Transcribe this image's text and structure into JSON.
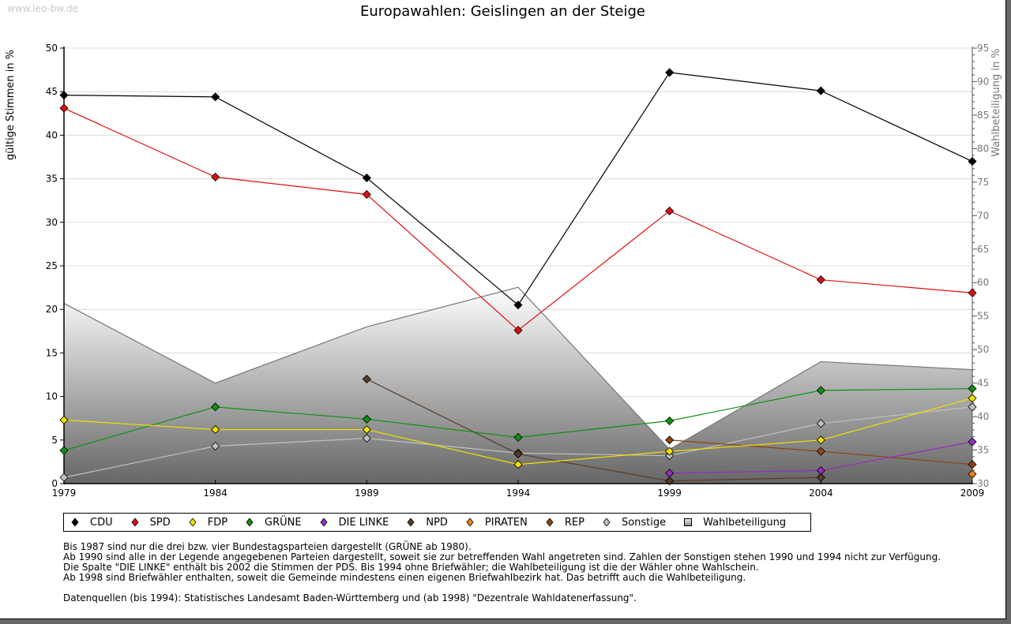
{
  "watermark": "www.leo-bw.de",
  "chart_data": {
    "type": "line",
    "title": "Europawahlen: Geislingen an der Steige",
    "ylabel": "gültige Stimmen in %",
    "y2label": "Wahlbeteiligung in %",
    "x": [
      1979,
      1984,
      1989,
      1994,
      1999,
      2004,
      2009
    ],
    "x_tick_labels": [
      "1979",
      "1984",
      "1989",
      "1994",
      "1999",
      "2004",
      "2009"
    ],
    "ylim": [
      0,
      50
    ],
    "y_ticks": [
      "0",
      "5",
      "10",
      "15",
      "20",
      "25",
      "30",
      "35",
      "40",
      "45",
      "50"
    ],
    "y2lim": [
      30,
      95
    ],
    "y2_ticks": [
      "30",
      "35",
      "40",
      "45",
      "50",
      "55",
      "60",
      "65",
      "70",
      "75",
      "80",
      "85",
      "90",
      "95"
    ],
    "grid": true,
    "legend_position": "bottom",
    "area_series": {
      "name": "Wahlbeteiligung",
      "axis": "right",
      "values": [
        56.9,
        45.0,
        53.4,
        59.3,
        35.1,
        48.2,
        47.0
      ]
    },
    "series": [
      {
        "name": "CDU",
        "color": "#000000",
        "values": [
          44.6,
          44.4,
          35.1,
          20.5,
          47.2,
          45.1,
          37.0
        ]
      },
      {
        "name": "SPD",
        "color": "#e01010",
        "values": [
          43.1,
          35.2,
          33.2,
          17.6,
          31.3,
          23.4,
          21.9
        ]
      },
      {
        "name": "FDP",
        "color": "#f0e000",
        "values": [
          7.3,
          6.2,
          6.2,
          2.2,
          3.7,
          5.0,
          9.8
        ]
      },
      {
        "name": "GRÜNE",
        "color": "#109010",
        "values": [
          3.8,
          8.8,
          7.4,
          5.3,
          7.2,
          10.7,
          10.9
        ]
      },
      {
        "name": "DIE LINKE",
        "color": "#9030c0",
        "values": [
          null,
          null,
          null,
          null,
          1.2,
          1.5,
          4.8
        ]
      },
      {
        "name": "NPD",
        "color": "#5a3a28",
        "values": [
          null,
          null,
          12.0,
          3.4,
          0.3,
          0.7,
          null
        ]
      },
      {
        "name": "PIRATEN",
        "color": "#f08010",
        "values": [
          null,
          null,
          null,
          null,
          null,
          null,
          1.1
        ]
      },
      {
        "name": "REP",
        "color": "#8b4513",
        "values": [
          null,
          null,
          null,
          null,
          5.0,
          3.7,
          2.2
        ]
      },
      {
        "name": "Sonstige",
        "color": "#c0c0c0",
        "values": [
          0.7,
          4.3,
          5.2,
          3.5,
          3.2,
          6.9,
          8.8
        ]
      }
    ]
  },
  "legend": [
    {
      "label": "CDU",
      "color": "#000000",
      "shape": "diamond"
    },
    {
      "label": "SPD",
      "color": "#e01010",
      "shape": "diamond"
    },
    {
      "label": "FDP",
      "color": "#f0e000",
      "shape": "diamond"
    },
    {
      "label": "GRÜNE",
      "color": "#109010",
      "shape": "diamond"
    },
    {
      "label": "DIE LINKE",
      "color": "#9030c0",
      "shape": "diamond"
    },
    {
      "label": "NPD",
      "color": "#5a3a28",
      "shape": "diamond"
    },
    {
      "label": "PIRATEN",
      "color": "#f08010",
      "shape": "diamond"
    },
    {
      "label": "REP",
      "color": "#8b4513",
      "shape": "diamond"
    },
    {
      "label": "Sonstige",
      "color": "#c0c0c0",
      "shape": "diamond"
    },
    {
      "label": "Wahlbeteiligung",
      "color": "#aaaaaa",
      "shape": "square"
    }
  ],
  "notes": [
    "Bis 1987 sind nur die drei bzw. vier Bundestagsparteien dargestellt (GRÜNE ab 1980).",
    "Ab 1990 sind alle in der Legende angegebenen Parteien dargestellt, soweit sie zur betreffenden Wahl angetreten sind. Zahlen der Sonstigen stehen 1990 und 1994 nicht zur Verfügung.",
    "Die Spalte \"DIE LINKE\" enthält bis 2002 die Stimmen der PDS. Bis 1994 ohne Briefwähler; die Wahlbeteiligung ist die der Wähler ohne Wahlschein.",
    "Ab 1998 sind Briefwähler enthalten, soweit die Gemeinde mindestens einen eigenen Briefwahlbezirk hat. Das betrifft auch die Wahlbeteiligung."
  ],
  "source": "Datenquellen (bis 1994): Statistisches Landesamt Baden-Württemberg und (ab 1998) \"Dezentrale Wahldatenerfassung\"."
}
